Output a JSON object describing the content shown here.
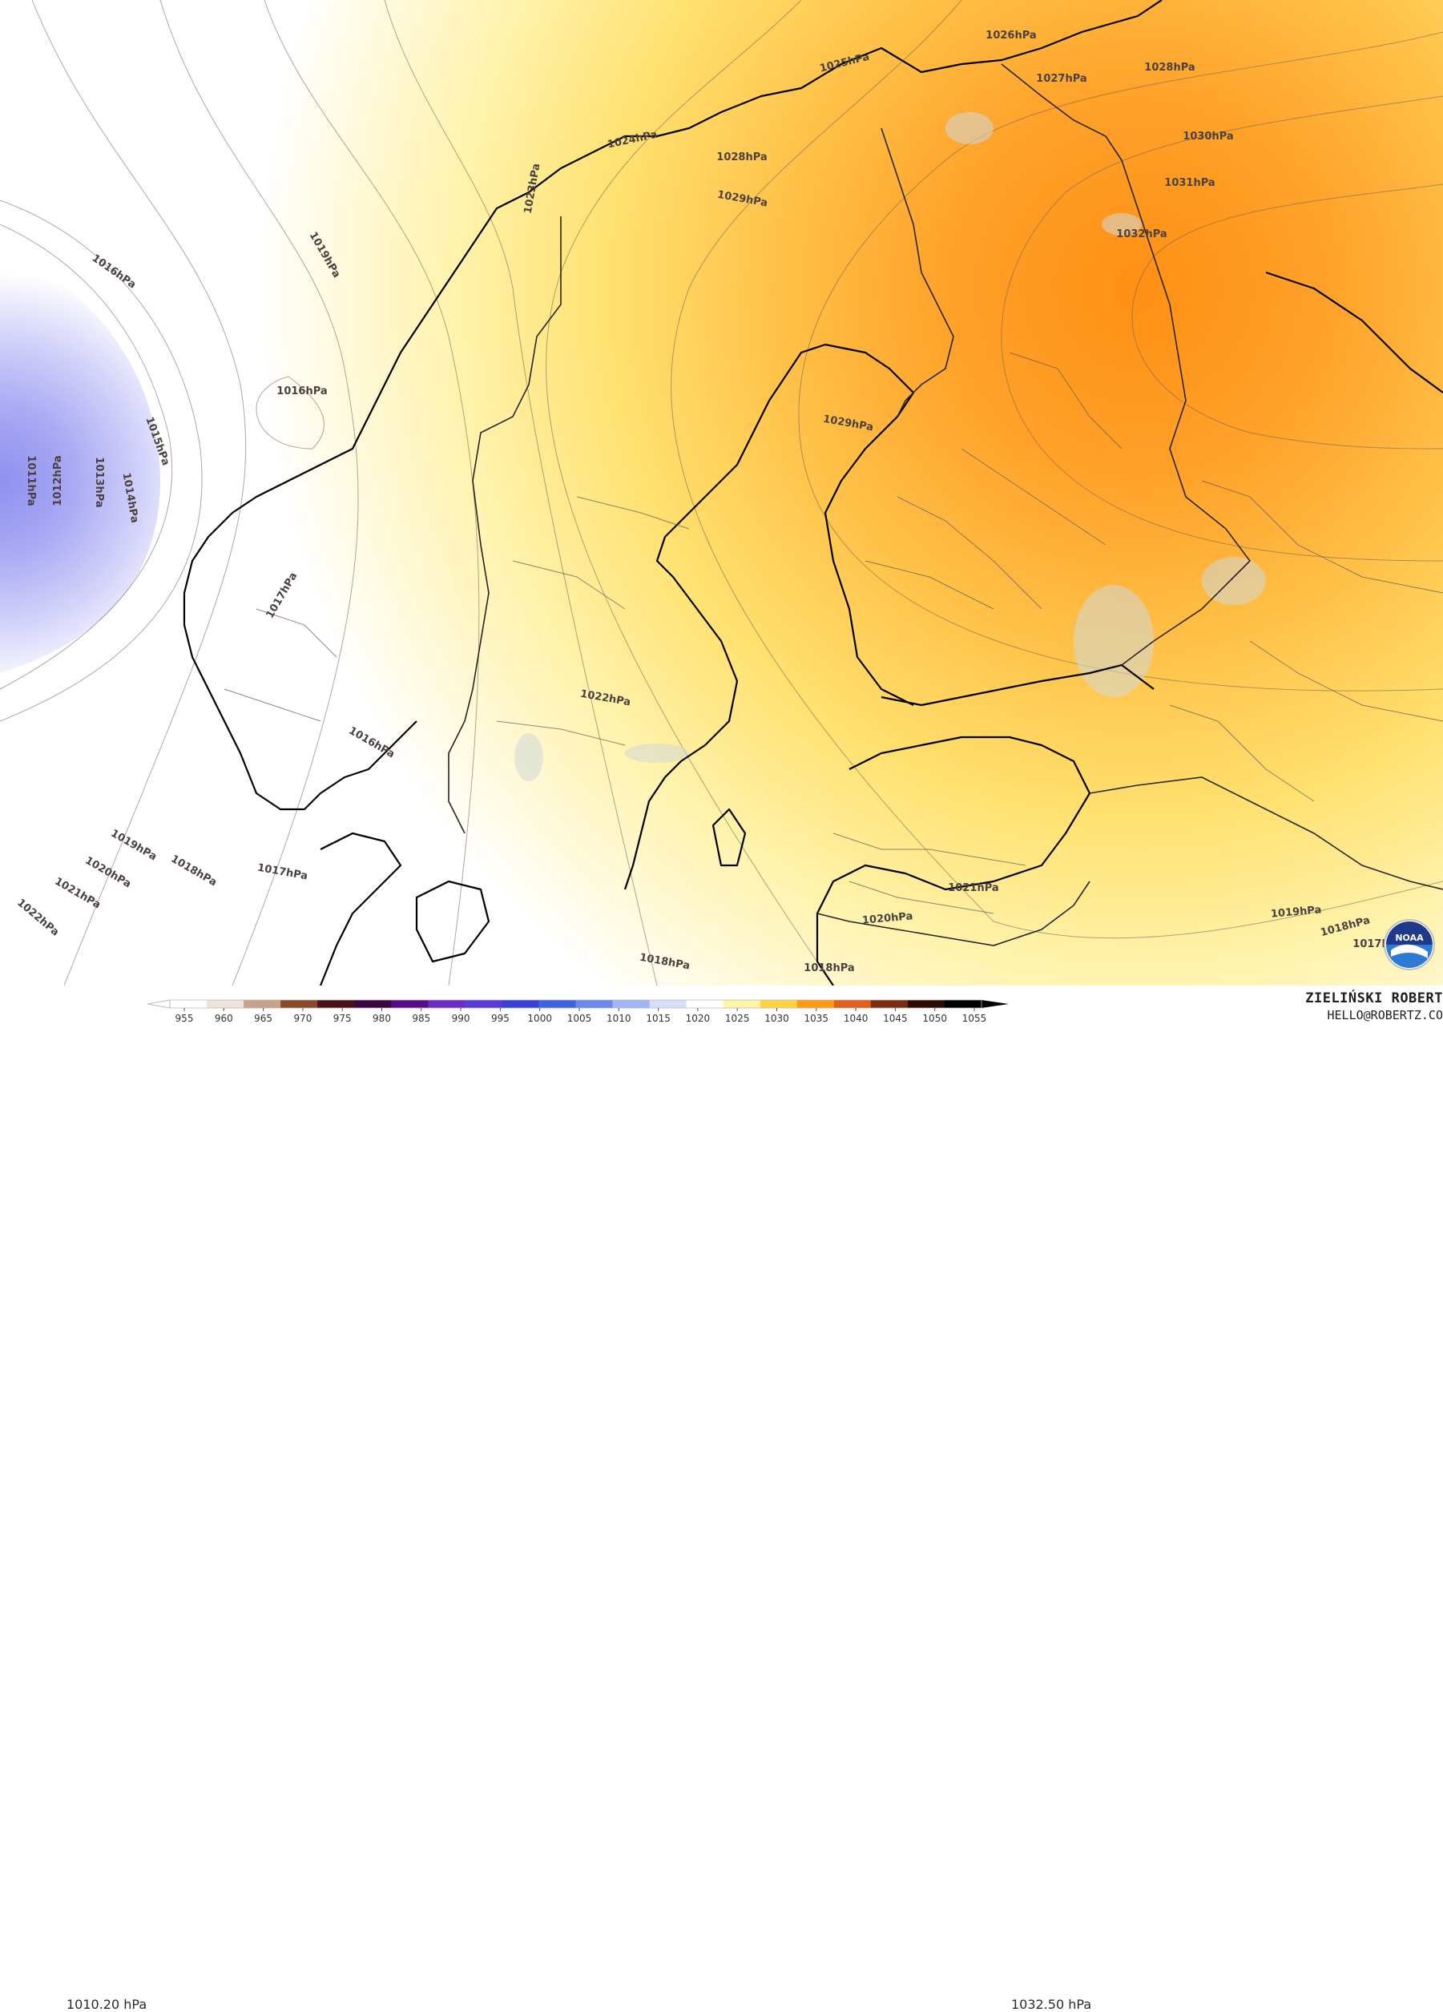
{
  "legend": {
    "min_value": "1010.20 hPa",
    "max_value": "1032.50 hPa",
    "ticks": [
      "955",
      "960",
      "965",
      "970",
      "975",
      "980",
      "985",
      "990",
      "995",
      "1000",
      "1005",
      "1010",
      "1015",
      "1020",
      "1025",
      "1030",
      "1035",
      "1040",
      "1045",
      "1050",
      "1055"
    ],
    "colors": [
      "#ffffff",
      "#efe4d9",
      "#c8a38a",
      "#8a4a2a",
      "#4b1216",
      "#3a0540",
      "#5a0b8a",
      "#6b2bc4",
      "#5a3ad8",
      "#3a40d6",
      "#3f63e0",
      "#6a89ec",
      "#a2b5f4",
      "#d6e0fa",
      "#ffffff",
      "#fff6a6",
      "#ffd440",
      "#ff9a18",
      "#e0601a",
      "#7a2d12",
      "#2a0c05",
      "#000000"
    ]
  },
  "credit": {
    "name": "ZIELIŃSKI ROBERT",
    "email": "HELLO@ROBERTZ.CO"
  },
  "logo": {
    "text": "NOAA",
    "icon": "noaa-logo"
  },
  "isobars": [
    {
      "label": "1026hPa"
    },
    {
      "label": "1025hPa"
    },
    {
      "label": "1028hPa"
    },
    {
      "label": "1027hPa"
    },
    {
      "label": "1030hPa"
    },
    {
      "label": "1031hPa"
    },
    {
      "label": "1032hPa"
    },
    {
      "label": "1024hPa"
    },
    {
      "label": "1023hPa"
    },
    {
      "label": "1028hPa"
    },
    {
      "label": "1029hPa"
    },
    {
      "label": "1019hPa"
    },
    {
      "label": "1016hPa"
    },
    {
      "label": "1016hPa"
    },
    {
      "label": "1015hPa"
    },
    {
      "label": "1014hPa"
    },
    {
      "label": "1013hPa"
    },
    {
      "label": "1012hPa"
    },
    {
      "label": "1011hPa"
    },
    {
      "label": "1029hPa"
    },
    {
      "label": "1017hPa"
    },
    {
      "label": "1022hPa"
    },
    {
      "label": "1016hPa"
    },
    {
      "label": "1019hPa"
    },
    {
      "label": "1018hPa"
    },
    {
      "label": "1017hPa"
    },
    {
      "label": "1020hPa"
    },
    {
      "label": "1021hPa"
    },
    {
      "label": "1022hPa"
    },
    {
      "label": "1021hPa"
    },
    {
      "label": "1020hPa"
    },
    {
      "label": "1018hPa"
    },
    {
      "label": "1018hPa"
    },
    {
      "label": "1019hPa"
    },
    {
      "label": "1018hPa"
    },
    {
      "label": "1017hPa"
    }
  ]
}
